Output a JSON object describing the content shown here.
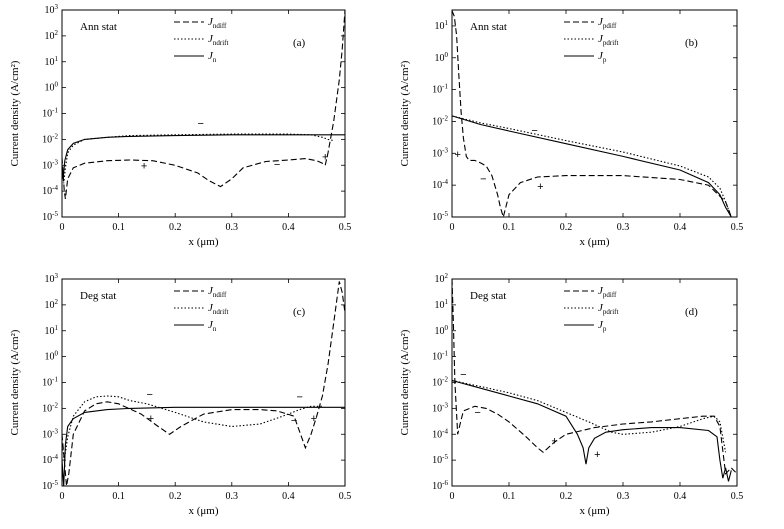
{
  "chart_data": [
    {
      "type": "line",
      "id": "a",
      "ylabel": "Current density (A/cm²)",
      "xlabel": "x (μm)",
      "panel_label": "(a)",
      "state_label": "Ann stat",
      "xlim": [
        0,
        0.5
      ],
      "ylim_exp": [
        -5,
        3
      ],
      "log_y": true,
      "xticks": [
        "0",
        "0.1",
        "0.2",
        "0.3",
        "0.4",
        "0.5"
      ],
      "yticks": [
        "10-5",
        "10-4",
        "10-3",
        "10-2",
        "10-1",
        "100",
        "101",
        "102",
        "103"
      ],
      "legend_position": "top-center",
      "series": [
        {
          "name": "Jndiff",
          "base": "J",
          "subscript": "ndiff",
          "style": "dashed",
          "x": [
            0,
            0.004,
            0.006,
            0.01,
            0.02,
            0.04,
            0.08,
            0.12,
            0.16,
            0.2,
            0.24,
            0.26,
            0.28,
            0.3,
            0.32,
            0.36,
            0.4,
            0.43,
            0.45,
            0.46,
            0.465,
            0.47,
            0.48,
            0.49,
            0.495,
            0.5
          ],
          "y": [
            0.002,
            0.0001,
            5e-05,
            0.0003,
            0.0008,
            0.0012,
            0.0015,
            0.0016,
            0.0015,
            0.001,
            0.0005,
            0.00025,
            0.00015,
            0.0003,
            0.0008,
            0.0014,
            0.0016,
            0.0018,
            0.0015,
            0.0012,
            0.001,
            0.003,
            0.05,
            2,
            30,
            1000
          ]
        },
        {
          "name": "Jndrift",
          "base": "J",
          "subscript": "ndrift",
          "style": "dotted",
          "x": [
            0,
            0.003,
            0.006,
            0.01,
            0.02,
            0.04,
            0.08,
            0.12,
            0.2,
            0.3,
            0.4,
            0.44,
            0.46,
            0.47,
            0.48
          ],
          "y": [
            0.001,
            0.0002,
            0.0008,
            0.003,
            0.006,
            0.01,
            0.012,
            0.014,
            0.015,
            0.016,
            0.016,
            0.015,
            0.012,
            0.01,
            0.009
          ]
        },
        {
          "name": "Jn",
          "base": "J",
          "subscript": "n",
          "style": "solid",
          "x": [
            0,
            0.002,
            0.005,
            0.01,
            0.02,
            0.04,
            0.08,
            0.12,
            0.2,
            0.3,
            0.4,
            0.5
          ],
          "y": [
            0.0008,
            0.0003,
            0.0015,
            0.004,
            0.007,
            0.01,
            0.012,
            0.013,
            0.014,
            0.015,
            0.015,
            0.015
          ]
        }
      ],
      "annotations": [
        {
          "text": "−",
          "x": 0.245,
          "y": 0.03
        },
        {
          "text": "+",
          "x": 0.145,
          "y": 0.0007
        },
        {
          "text": "−",
          "x": 0.38,
          "y": 0.0008
        },
        {
          "text": "+",
          "x": 0.465,
          "y": 0.0015
        }
      ]
    },
    {
      "type": "line",
      "id": "b",
      "ylabel": "Current density (A/cm²)",
      "xlabel": "x (μm)",
      "panel_label": "(b)",
      "state_label": "Ann stat",
      "xlim": [
        0,
        0.5
      ],
      "ylim_exp": [
        -5,
        1.5
      ],
      "log_y": true,
      "xticks": [
        "0",
        "0.1",
        "0.2",
        "0.3",
        "0.4",
        "0.5"
      ],
      "yticks": [
        "10-5",
        "10-4",
        "10-3",
        "10-2",
        "10-1",
        "100",
        "101"
      ],
      "legend_position": "top-center",
      "series": [
        {
          "name": "Jpdiff",
          "base": "J",
          "subscript": "pdiff",
          "style": "dashed",
          "x": [
            0,
            0.004,
            0.008,
            0.012,
            0.016,
            0.02,
            0.025,
            0.03,
            0.04,
            0.05,
            0.06,
            0.07,
            0.08,
            0.085,
            0.09,
            0.1,
            0.12,
            0.15,
            0.2,
            0.3,
            0.4,
            0.45,
            0.48,
            0.49
          ],
          "y": [
            30,
            20,
            5,
            0.3,
            0.02,
            0.003,
            0.0008,
            0.0006,
            0.0006,
            0.0005,
            0.0004,
            0.0002,
            5e-05,
            2e-05,
            1e-05,
            5e-05,
            0.00012,
            0.00018,
            0.0002,
            0.0002,
            0.00015,
            0.0001,
            3e-05,
            1e-05
          ]
        },
        {
          "name": "Jpdrift",
          "base": "J",
          "subscript": "pdrift",
          "style": "dotted",
          "x": [
            0,
            0.05,
            0.1,
            0.2,
            0.3,
            0.4,
            0.45,
            0.47,
            0.48,
            0.49
          ],
          "y": [
            0.015,
            0.009,
            0.006,
            0.0025,
            0.0011,
            0.0004,
            0.00018,
            8e-05,
            3e-05,
            1e-05
          ]
        },
        {
          "name": "Jp",
          "base": "J",
          "subscript": "p",
          "style": "solid",
          "x": [
            0,
            0.05,
            0.1,
            0.2,
            0.3,
            0.4,
            0.45,
            0.47,
            0.48,
            0.49
          ],
          "y": [
            0.015,
            0.008,
            0.005,
            0.002,
            0.0008,
            0.0003,
            0.00012,
            5e-05,
            2e-05,
            1e-05
          ]
        }
      ],
      "annotations": [
        {
          "text": "−",
          "x": 0.145,
          "y": 0.004
        },
        {
          "text": "+",
          "x": 0.01,
          "y": 0.0007
        },
        {
          "text": "−",
          "x": 0.055,
          "y": 0.00012
        },
        {
          "text": "+",
          "x": 0.155,
          "y": 7e-05
        }
      ]
    },
    {
      "type": "line",
      "id": "c",
      "ylabel": "Current density (A/cm²)",
      "xlabel": "x (μm)",
      "panel_label": "(c)",
      "state_label": "Deg stat",
      "xlim": [
        0,
        0.5
      ],
      "ylim_exp": [
        -5,
        3
      ],
      "log_y": true,
      "xticks": [
        "0",
        "0.1",
        "0.2",
        "0.3",
        "0.4",
        "0.5"
      ],
      "yticks": [
        "10-5",
        "10-4",
        "10-3",
        "10-2",
        "10-1",
        "100",
        "101",
        "102",
        "103"
      ],
      "legend_position": "top-center",
      "series": [
        {
          "name": "Jndiff",
          "base": "J",
          "subscript": "ndiff",
          "style": "dashed",
          "x": [
            0,
            0.004,
            0.008,
            0.012,
            0.02,
            0.04,
            0.06,
            0.08,
            0.1,
            0.14,
            0.17,
            0.19,
            0.21,
            0.25,
            0.3,
            0.35,
            0.38,
            0.41,
            0.43,
            0.44,
            0.45,
            0.46,
            0.47,
            0.48,
            0.49,
            0.495,
            0.5
          ],
          "y": [
            0.001,
            0.0001,
            1e-05,
            3e-05,
            0.001,
            0.008,
            0.015,
            0.018,
            0.015,
            0.006,
            0.002,
            0.001,
            0.002,
            0.006,
            0.009,
            0.009,
            0.008,
            0.005,
            0.0003,
            0.001,
            0.005,
            0.03,
            0.5,
            20,
            800,
            300,
            50
          ]
        },
        {
          "name": "Jndrift",
          "base": "J",
          "subscript": "ndrift",
          "style": "dotted",
          "x": [
            0,
            0.004,
            0.01,
            0.02,
            0.04,
            0.06,
            0.08,
            0.1,
            0.12,
            0.15,
            0.2,
            0.25,
            0.3,
            0.35,
            0.39,
            0.42,
            0.44,
            0.46
          ],
          "y": [
            0.0005,
            0.0001,
            0.0008,
            0.005,
            0.018,
            0.028,
            0.03,
            0.028,
            0.02,
            0.015,
            0.007,
            0.003,
            0.002,
            0.0025,
            0.005,
            0.009,
            0.012,
            0.012
          ]
        },
        {
          "name": "Jn",
          "base": "J",
          "subscript": "n",
          "style": "solid",
          "x": [
            0,
            0.003,
            0.006,
            0.01,
            0.02,
            0.04,
            0.08,
            0.12,
            0.2,
            0.3,
            0.4,
            0.5
          ],
          "y": [
            0.0001,
            1e-05,
            0.0004,
            0.002,
            0.004,
            0.007,
            0.009,
            0.01,
            0.011,
            0.011,
            0.011,
            0.011
          ]
        }
      ],
      "annotations": [
        {
          "text": "−",
          "x": 0.155,
          "y": 0.025
        },
        {
          "text": "+",
          "x": 0.157,
          "y": 0.003
        },
        {
          "text": "−",
          "x": 0.42,
          "y": 0.02
        },
        {
          "text": "−",
          "x": 0.41,
          "y": 0.0025
        },
        {
          "text": "+",
          "x": 0.445,
          "y": 0.003
        }
      ]
    },
    {
      "type": "line",
      "id": "d",
      "ylabel": "Current density (A/cm²)",
      "xlabel": "x (μm)",
      "panel_label": "(d)",
      "state_label": "Deg stat",
      "xlim": [
        0,
        0.5
      ],
      "ylim_exp": [
        -6,
        2
      ],
      "log_y": true,
      "xticks": [
        "0",
        "0.1",
        "0.2",
        "0.3",
        "0.4",
        "0.5"
      ],
      "yticks": [
        "10-6",
        "10-5",
        "10-4",
        "10-3",
        "10-2",
        "10-1",
        "100",
        "101",
        "102"
      ],
      "legend_position": "top-center",
      "series": [
        {
          "name": "Jpdiff",
          "base": "J",
          "subscript": "pdiff",
          "style": "dashed",
          "x": [
            0,
            0.002,
            0.005,
            0.01,
            0.015,
            0.02,
            0.04,
            0.06,
            0.08,
            0.1,
            0.13,
            0.15,
            0.16,
            0.18,
            0.2,
            0.25,
            0.3,
            0.35,
            0.4,
            0.44,
            0.46,
            0.47,
            0.48,
            0.49,
            0.5
          ],
          "y": [
            100,
            5,
            0.01,
            0.0001,
            0.0003,
            0.0008,
            0.0012,
            0.001,
            0.0006,
            0.0003,
            8e-05,
            3e-05,
            2e-05,
            5e-05,
            0.0001,
            0.00018,
            0.00025,
            0.0003,
            0.0004,
            0.0005,
            0.0005,
            0.0002,
            3e-06,
            5e-06,
            3e-06
          ]
        },
        {
          "name": "Jpdrift",
          "base": "J",
          "subscript": "pdrift",
          "style": "dotted",
          "x": [
            0,
            0.05,
            0.1,
            0.15,
            0.2,
            0.24,
            0.28,
            0.3,
            0.35,
            0.4,
            0.44,
            0.46,
            0.47,
            0.48
          ],
          "y": [
            0.012,
            0.007,
            0.004,
            0.002,
            0.0007,
            0.0003,
            0.00012,
            0.0001,
            0.00012,
            0.0002,
            0.0004,
            0.0005,
            0.0003,
            2e-05
          ]
        },
        {
          "name": "Jp",
          "base": "J",
          "subscript": "p",
          "style": "solid",
          "x": [
            0,
            0.05,
            0.1,
            0.15,
            0.2,
            0.22,
            0.23,
            0.235,
            0.24,
            0.25,
            0.27,
            0.3,
            0.35,
            0.4,
            0.45,
            0.465,
            0.47,
            0.475,
            0.48,
            0.485,
            0.49
          ],
          "y": [
            0.012,
            0.006,
            0.003,
            0.0015,
            0.0005,
            0.0001,
            3e-05,
            7e-06,
            3e-05,
            7e-05,
            0.00012,
            0.00015,
            0.00018,
            0.00018,
            0.00014,
            8e-05,
            1e-05,
            2e-06,
            5e-06,
            1.5e-06,
            4e-06
          ]
        }
      ],
      "annotations": [
        {
          "text": "−",
          "x": 0.02,
          "y": 0.015
        },
        {
          "text": "−",
          "x": 0.045,
          "y": 0.0005
        },
        {
          "text": "+",
          "x": 0.18,
          "y": 4e-05
        },
        {
          "text": "+",
          "x": 0.255,
          "y": 1.2e-05
        }
      ]
    }
  ]
}
